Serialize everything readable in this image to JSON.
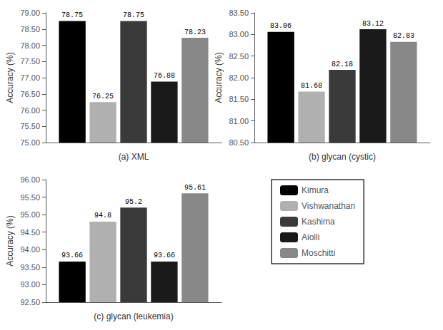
{
  "chart_data": [
    {
      "type": "bar",
      "xlabel": "(a) XML",
      "ylabel": "Accuracy (%)",
      "categories": [
        null
      ],
      "series": [
        {
          "name": "Kimura",
          "color": "#000000",
          "values": [
            78.75
          ]
        },
        {
          "name": "Vishwanathan",
          "color": "#b0b0b0",
          "values": [
            76.25
          ]
        },
        {
          "name": "Kashima",
          "color": "#3a3a3a",
          "values": [
            78.75
          ]
        },
        {
          "name": "Aiolli",
          "color": "#1a1a1a",
          "values": [
            76.88
          ]
        },
        {
          "name": "Moschitti",
          "color": "#888888",
          "values": [
            78.23
          ]
        }
      ],
      "ylim": [
        75.0,
        79.0
      ],
      "yticks": [
        {
          "value": 75.0,
          "label": "75.00"
        },
        {
          "value": 75.5,
          "label": "75.50"
        },
        {
          "value": 76.0,
          "label": "76.00"
        },
        {
          "value": 76.5,
          "label": "76.50"
        },
        {
          "value": 77.0,
          "label": "77.00"
        },
        {
          "value": 77.5,
          "label": "77.50"
        },
        {
          "value": 78.0,
          "label": "78.00"
        },
        {
          "value": 78.5,
          "label": "78.50"
        },
        {
          "value": 79.0,
          "label": "79.00"
        }
      ],
      "grid": false,
      "data_labels": true,
      "tick_labels": "y",
      "legend": "lower right"
    },
    {
      "type": "bar",
      "xlabel": "(b) glycan (cystic)",
      "ylabel": "Accuracy (%)",
      "categories": [
        null
      ],
      "series": [
        {
          "name": "Kimura",
          "color": "#000000",
          "values": [
            83.06
          ]
        },
        {
          "name": "Vishwanathan",
          "color": "#b0b0b0",
          "values": [
            81.68
          ]
        },
        {
          "name": "Kashima",
          "color": "#3a3a3a",
          "values": [
            82.18
          ]
        },
        {
          "name": "Aiolli",
          "color": "#1a1a1a",
          "values": [
            83.12
          ]
        },
        {
          "name": "Moschitti",
          "color": "#888888",
          "values": [
            82.83
          ]
        }
      ],
      "ylim": [
        80.5,
        83.5
      ],
      "yticks": [
        {
          "value": 80.5,
          "label": "80.50"
        },
        {
          "value": 81.0,
          "label": "81.00"
        },
        {
          "value": 81.5,
          "label": "81.50"
        },
        {
          "value": 82.0,
          "label": "82.00"
        },
        {
          "value": 82.5,
          "label": "82.50"
        },
        {
          "value": 83.0,
          "label": "83.00"
        },
        {
          "value": 83.5,
          "label": "83.50"
        }
      ],
      "grid": false,
      "data_labels": true,
      "tick_labels": "y",
      "legend": "lower right"
    },
    {
      "type": "bar",
      "xlabel": "(c) glycan (leukemia)",
      "ylabel": "Accuracy (%)",
      "categories": [
        null
      ],
      "series": [
        {
          "name": "Kimura",
          "color": "#000000",
          "values": [
            93.66
          ]
        },
        {
          "name": "Vishwanathan",
          "color": "#b0b0b0",
          "values": [
            94.8
          ]
        },
        {
          "name": "Kashima",
          "color": "#3a3a3a",
          "values": [
            95.2
          ]
        },
        {
          "name": "Aiolli",
          "color": "#1a1a1a",
          "values": [
            93.66
          ]
        },
        {
          "name": "Moschitti",
          "color": "#888888",
          "values": [
            95.61
          ]
        }
      ],
      "ylim": [
        92.5,
        96.0
      ],
      "yticks": [
        {
          "value": 92.5,
          "label": "92.50"
        },
        {
          "value": 93.0,
          "label": "93.00"
        },
        {
          "value": 93.5,
          "label": "93.50"
        },
        {
          "value": 94.0,
          "label": "94.00"
        },
        {
          "value": 94.5,
          "label": "94.50"
        },
        {
          "value": 95.0,
          "label": "95.00"
        },
        {
          "value": 95.5,
          "label": "95.50"
        },
        {
          "value": 96.0,
          "label": "96.00"
        }
      ],
      "grid": false,
      "data_labels": true,
      "tick_labels": "y",
      "legend": "lower right"
    }
  ]
}
